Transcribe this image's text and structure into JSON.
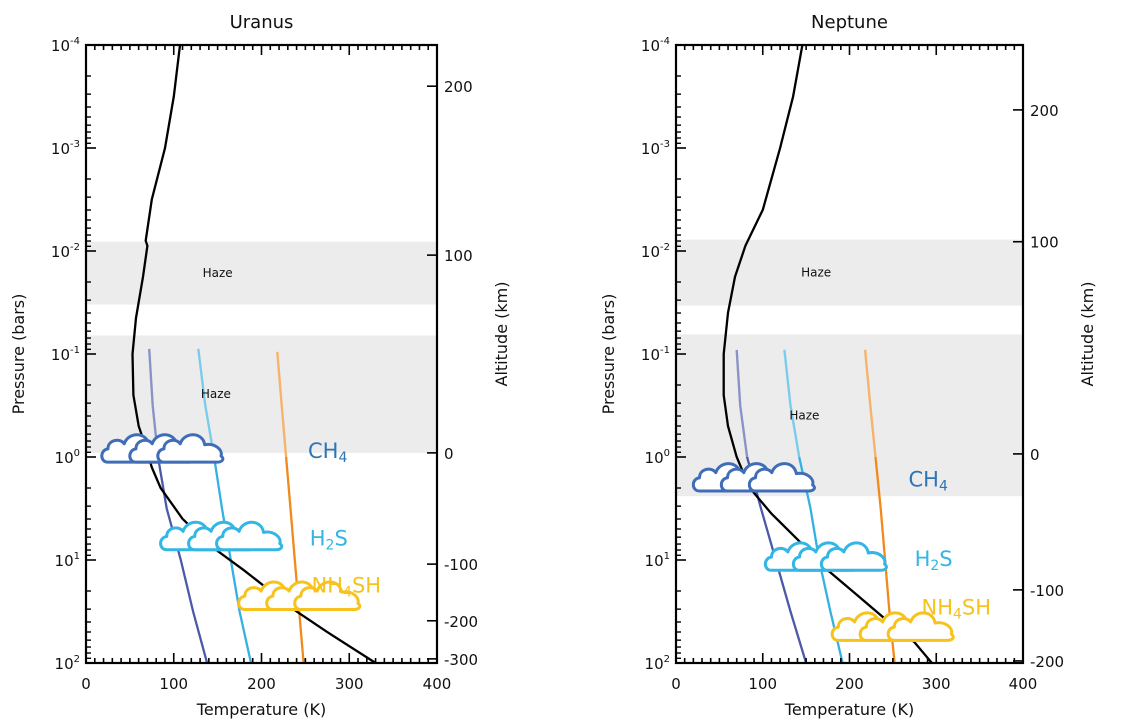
{
  "chart_data": [
    {
      "type": "line",
      "title": "Uranus",
      "xlabel": "Temperature (K)",
      "ylabel": "Pressure (bars)",
      "y2label": "Altitude (km)",
      "xlim": [
        0,
        400
      ],
      "ylim_log10_pressure": [
        2,
        -4
      ],
      "yscale": "log",
      "x_ticks": [
        "0",
        "100",
        "200",
        "300",
        "400"
      ],
      "y_ticks": [
        {
          "log": -4,
          "base": "10",
          "exp": "-4"
        },
        {
          "log": -3,
          "base": "10",
          "exp": "-3"
        },
        {
          "log": -2,
          "base": "10",
          "exp": "-2"
        },
        {
          "log": -1,
          "base": "10",
          "exp": "-1"
        },
        {
          "log": 0,
          "base": "10",
          "exp": "0"
        },
        {
          "log": 1,
          "base": "10",
          "exp": "1"
        },
        {
          "log": 2,
          "base": "10",
          "exp": "2"
        }
      ],
      "alt_ticks": [
        {
          "value": 200,
          "log_pressure": -3.6
        },
        {
          "value": 100,
          "log_pressure": -1.96
        },
        {
          "value": 0,
          "log_pressure": -0.04
        },
        {
          "value": -100,
          "log_pressure": 1.04
        },
        {
          "value": -200,
          "log_pressure": 1.59
        },
        {
          "value": -300,
          "log_pressure": 1.96
        }
      ],
      "haze_bands": [
        {
          "label": "Haze",
          "log_pressure": [
            -2.09,
            -1.48
          ]
        },
        {
          "label": "Haze",
          "log_pressure": [
            -1.18,
            -0.04
          ]
        }
      ],
      "temperature_profile": {
        "color": "#000000",
        "points": [
          [
            110,
            -4.2
          ],
          [
            100,
            -3.5
          ],
          [
            90,
            -3.0
          ],
          [
            75,
            -2.5
          ],
          [
            68,
            -2.1
          ],
          [
            70,
            -2.05
          ],
          [
            65,
            -1.75
          ],
          [
            57,
            -1.35
          ],
          [
            53,
            -1.0
          ],
          [
            54,
            -0.6
          ],
          [
            60,
            -0.3
          ],
          [
            68,
            -0.1
          ],
          [
            75,
            0.1
          ],
          [
            85,
            0.3
          ],
          [
            110,
            0.6
          ],
          [
            140,
            0.85
          ],
          [
            180,
            1.1
          ],
          [
            210,
            1.3
          ],
          [
            240,
            1.5
          ],
          [
            275,
            1.7
          ],
          [
            330,
            2.0
          ]
        ]
      },
      "condensation_curves": [
        {
          "color": "#4b5aa8",
          "points": [
            [
              72,
              -1.05
            ],
            [
              76,
              -0.5
            ],
            [
              82,
              0.0
            ],
            [
              92,
              0.5
            ],
            [
              108,
              1.0
            ],
            [
              122,
              1.5
            ],
            [
              138,
              2.0
            ]
          ]
        },
        {
          "color": "#35b1e0",
          "points": [
            [
              128,
              -1.05
            ],
            [
              136,
              -0.5
            ],
            [
              146,
              0.0
            ],
            [
              155,
              0.5
            ],
            [
              165,
              1.0
            ],
            [
              175,
              1.5
            ],
            [
              188,
              2.0
            ]
          ]
        },
        {
          "color": "#f08a1c",
          "points": [
            [
              218,
              -1.02
            ],
            [
              223,
              -0.5
            ],
            [
              228,
              0.0
            ],
            [
              233,
              0.5
            ],
            [
              238,
              1.0
            ],
            [
              243,
              1.5
            ],
            [
              248,
              2.0
            ]
          ]
        }
      ],
      "clouds": [
        {
          "species_base": "CH",
          "species_sub": "4",
          "species_tail": "",
          "color": "#3f6db8",
          "label_color": "#2e75b6",
          "x": 18,
          "log_pressure": 0.05,
          "label_x": 253,
          "label_log_pressure": -0.07
        },
        {
          "species_base": "H",
          "species_sub": "2",
          "species_tail": "S",
          "color": "#33b5e5",
          "label_color": "#33b5e5",
          "x": 85,
          "log_pressure": 0.9,
          "label_x": 255,
          "label_log_pressure": 0.78
        },
        {
          "species_base": "NH",
          "species_sub": "4",
          "species_tail": "SH",
          "color": "#f7c21b",
          "label_color": "#f7c21b",
          "x": 174,
          "log_pressure": 1.48,
          "label_x": 257,
          "label_log_pressure": 1.24
        }
      ]
    },
    {
      "type": "line",
      "title": "Neptune",
      "xlabel": "Temperature (K)",
      "ylabel": "Pressure (bars)",
      "y2label": "Altitude (km)",
      "xlim": [
        0,
        400
      ],
      "ylim_log10_pressure": [
        2,
        -4
      ],
      "yscale": "log",
      "x_ticks": [
        "0",
        "100",
        "200",
        "300",
        "400"
      ],
      "y_ticks": [
        {
          "log": -4,
          "base": "10",
          "exp": "-4"
        },
        {
          "log": -3,
          "base": "10",
          "exp": "-3"
        },
        {
          "log": -2,
          "base": "10",
          "exp": "-2"
        },
        {
          "log": -1,
          "base": "10",
          "exp": "-1"
        },
        {
          "log": 0,
          "base": "10",
          "exp": "0"
        },
        {
          "log": 1,
          "base": "10",
          "exp": "1"
        },
        {
          "log": 2,
          "base": "10",
          "exp": "2"
        }
      ],
      "alt_ticks": [
        {
          "value": 200,
          "log_pressure": -3.37
        },
        {
          "value": 100,
          "log_pressure": -2.09
        },
        {
          "value": 0,
          "log_pressure": -0.03
        },
        {
          "value": -100,
          "log_pressure": 1.29
        },
        {
          "value": -200,
          "log_pressure": 1.98
        }
      ],
      "haze_bands": [
        {
          "label": "Haze",
          "log_pressure": [
            -2.11,
            -1.47
          ]
        },
        {
          "label": "Haze",
          "log_pressure": [
            -1.19,
            0.38
          ]
        }
      ],
      "temperature_profile": {
        "color": "#000000",
        "points": [
          [
            150,
            -4.2
          ],
          [
            135,
            -3.5
          ],
          [
            120,
            -3.0
          ],
          [
            100,
            -2.4
          ],
          [
            80,
            -2.05
          ],
          [
            68,
            -1.75
          ],
          [
            60,
            -1.4
          ],
          [
            55,
            -1.0
          ],
          [
            55,
            -0.6
          ],
          [
            60,
            -0.3
          ],
          [
            70,
            0.0
          ],
          [
            85,
            0.3
          ],
          [
            110,
            0.55
          ],
          [
            140,
            0.8
          ],
          [
            175,
            1.1
          ],
          [
            210,
            1.35
          ],
          [
            245,
            1.6
          ],
          [
            275,
            1.8
          ],
          [
            295,
            2.0
          ]
        ]
      },
      "condensation_curves": [
        {
          "color": "#4b5aa8",
          "points": [
            [
              70,
              -1.04
            ],
            [
              74,
              -0.5
            ],
            [
              82,
              0.0
            ],
            [
              98,
              0.5
            ],
            [
              115,
              1.0
            ],
            [
              132,
              1.5
            ],
            [
              150,
              2.0
            ]
          ]
        },
        {
          "color": "#35b1e0",
          "points": [
            [
              125,
              -1.04
            ],
            [
              132,
              -0.5
            ],
            [
              142,
              0.0
            ],
            [
              155,
              0.5
            ],
            [
              165,
              1.0
            ],
            [
              178,
              1.5
            ],
            [
              192,
              2.0
            ]
          ]
        },
        {
          "color": "#f08a1c",
          "points": [
            [
              218,
              -1.04
            ],
            [
              224,
              -0.5
            ],
            [
              230,
              0.0
            ],
            [
              236,
              0.5
            ],
            [
              241,
              1.0
            ],
            [
              246,
              1.5
            ],
            [
              252,
              2.0
            ]
          ]
        }
      ],
      "clouds": [
        {
          "species_base": "CH",
          "species_sub": "4",
          "species_tail": "",
          "color": "#3f6db8",
          "label_color": "#2e75b6",
          "x": 20,
          "log_pressure": 0.33,
          "label_x": 268,
          "label_log_pressure": 0.21
        },
        {
          "species_base": "H",
          "species_sub": "2",
          "species_tail": "S",
          "color": "#33b5e5",
          "label_color": "#33b5e5",
          "x": 103,
          "log_pressure": 1.1,
          "label_x": 275,
          "label_log_pressure": 0.98
        },
        {
          "species_base": "NH",
          "species_sub": "4",
          "species_tail": "SH",
          "color": "#f7c21b",
          "label_color": "#f7c21b",
          "x": 180,
          "log_pressure": 1.78,
          "label_x": 283,
          "label_log_pressure": 1.45
        }
      ]
    }
  ]
}
